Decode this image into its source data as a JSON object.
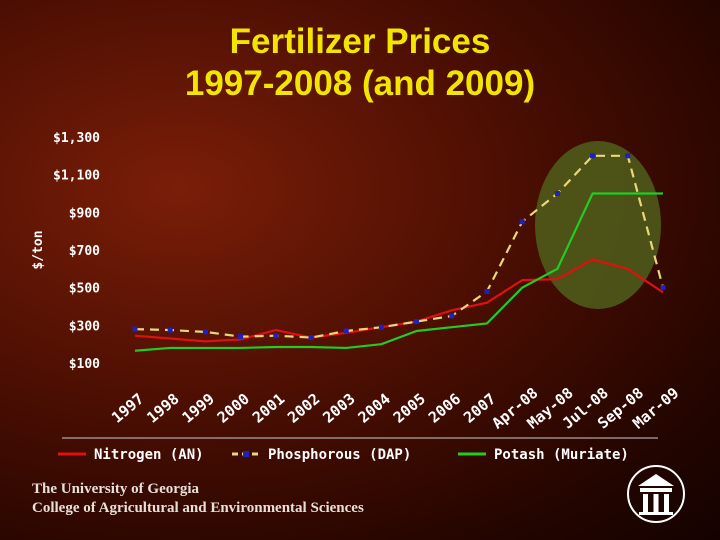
{
  "slide": {
    "title_line1": "Fertilizer Prices",
    "title_line2": "1997-2008 (and 2009)",
    "footer_line1": "The University of Georgia",
    "footer_line2": "College of Agricultural and Environmental Sciences",
    "logo_icon": "arch-icon"
  },
  "colors": {
    "background": "#4a0e02",
    "title": "#f2e600",
    "highlight_circle": "#4f5a1a",
    "nitrogen": "#e01010",
    "phosphorous_dash": "#e8d87a",
    "phosphorous_marker": "#2020c0",
    "potash": "#22cc22"
  },
  "chart_data": {
    "type": "line",
    "title": "",
    "xlabel": "",
    "ylabel": "$/ton",
    "categories": [
      "1997",
      "1998",
      "1999",
      "2000",
      "2001",
      "2002",
      "2003",
      "2004",
      "2005",
      "2006",
      "2007",
      "Apr-08",
      "May-08",
      "Jul-08",
      "Sep-08",
      "Mar-09"
    ],
    "yticks": [
      "$100",
      "$300",
      "$500",
      "$700",
      "$900",
      "$1,100",
      "$1,300"
    ],
    "ylim": [
      100,
      1300
    ],
    "grid": false,
    "legend_position": "bottom",
    "highlight": "circle around Jul-08 through Mar-09",
    "series": [
      {
        "name": "Nitrogen (AN)",
        "color": "#e01010",
        "style": "solid",
        "values": [
          245,
          230,
          215,
          225,
          275,
          235,
          260,
          290,
          320,
          380,
          420,
          540,
          545,
          650,
          600,
          475
        ]
      },
      {
        "name": "Phosphorous (DAP)",
        "color": "#e8d87a",
        "style": "dashed",
        "marker_color": "#2020c0",
        "values": [
          280,
          275,
          265,
          240,
          245,
          235,
          270,
          290,
          320,
          350,
          480,
          850,
          1000,
          1200,
          1200,
          500
        ]
      },
      {
        "name": "Potash (Muriate)",
        "color": "#22cc22",
        "style": "solid",
        "values": [
          165,
          180,
          180,
          180,
          185,
          185,
          180,
          200,
          270,
          290,
          310,
          500,
          600,
          1000,
          1000,
          1000
        ]
      }
    ]
  }
}
